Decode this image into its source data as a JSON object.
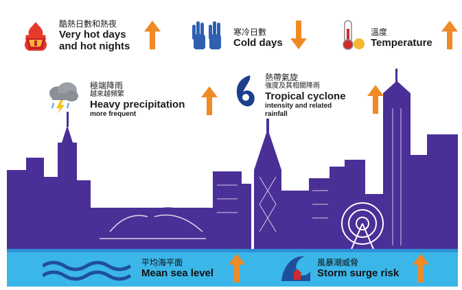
{
  "items": {
    "hot_days": {
      "zh": "酷熱日數和熱夜",
      "en_line1": "Very hot days",
      "en_line2": "and hot nights",
      "trend": "up"
    },
    "cold_days": {
      "zh": "寒冷日數",
      "en": "Cold days",
      "trend": "down"
    },
    "temperature": {
      "zh": "溫度",
      "en": "Temperature",
      "trend": "up"
    },
    "heavy_precipitation": {
      "zh": "極端降雨",
      "zh_sub": "越來越頻繁",
      "en": "Heavy precipitation",
      "en_sub": "more frequent",
      "trend": "up"
    },
    "tropical_cyclone": {
      "zh": "熱帶氣旋",
      "zh_sub": "強度及其相關降雨",
      "en": "Tropical cyclone",
      "en_sub_line1": "intensity and related",
      "en_sub_line2": "rainfall",
      "trend": "up"
    },
    "mean_sea_level": {
      "zh": "平均海平面",
      "en": "Mean sea level",
      "trend": "up"
    },
    "storm_surge": {
      "zh": "風暴潮威脅",
      "en": "Storm surge risk",
      "trend": "up"
    }
  },
  "icons": {
    "hot_days": "flame-badge-icon",
    "cold_days": "glove-icon",
    "temperature": "thermometer-icon",
    "heavy_precipitation": "storm-cloud-icon",
    "tropical_cyclone": "cyclone-icon",
    "mean_sea_level": "wave-icon",
    "storm_surge": "storm-surge-icon",
    "trend_up": "arrow-up-icon",
    "trend_down": "arrow-down-icon"
  },
  "colors": {
    "skyline": "#4a2f97",
    "sea": "#3bb6e8",
    "sea_dark": "#1f7fc8",
    "arrow": "#f08a24",
    "cyclone": "#1c3f8c",
    "hot_badge": "#c8202a",
    "glove": "#2f5fb0"
  }
}
